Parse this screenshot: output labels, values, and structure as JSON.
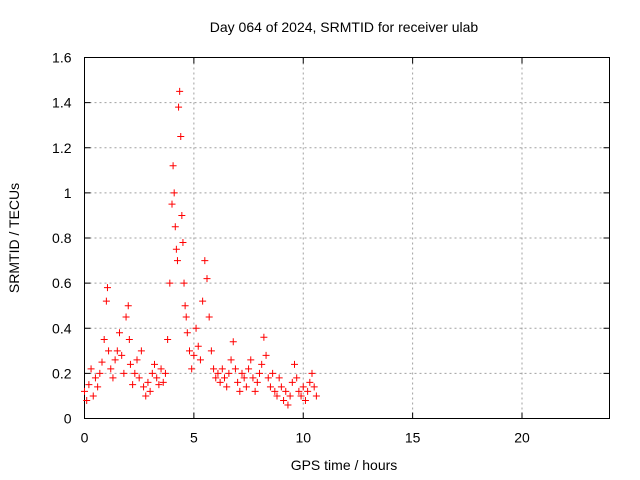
{
  "chart_data": {
    "type": "scatter",
    "title": "Day 064 of 2024, SRMTID for receiver ulab",
    "xlabel": "GPS time / hours",
    "ylabel": "SRMTID / TECUs",
    "xlim": [
      0,
      24
    ],
    "ylim": [
      0,
      1.6
    ],
    "xticks": [
      0,
      5,
      10,
      15,
      20
    ],
    "yticks": [
      0,
      0.2,
      0.4,
      0.6,
      0.8,
      1,
      1.2,
      1.4,
      1.6
    ],
    "xtick_labels": [
      "0",
      "5",
      "10",
      "15",
      "20"
    ],
    "ytick_labels": [
      "0",
      "0.2",
      "0.4",
      "0.6",
      "0.8",
      "1",
      "1.2",
      "1.4",
      "1.6"
    ],
    "grid": true,
    "marker": "+",
    "color": "#ff0000",
    "series": [
      {
        "name": "SRMTID",
        "x": [
          0.0,
          0.1,
          0.2,
          0.3,
          0.4,
          0.5,
          0.6,
          0.7,
          0.8,
          0.9,
          1.0,
          1.05,
          1.1,
          1.2,
          1.3,
          1.4,
          1.5,
          1.6,
          1.7,
          1.8,
          1.9,
          2.0,
          2.05,
          2.1,
          2.2,
          2.3,
          2.4,
          2.5,
          2.6,
          2.7,
          2.8,
          2.9,
          3.0,
          3.1,
          3.2,
          3.3,
          3.4,
          3.5,
          3.6,
          3.7,
          3.8,
          3.9,
          4.0,
          4.05,
          4.1,
          4.15,
          4.2,
          4.25,
          4.3,
          4.35,
          4.4,
          4.45,
          4.5,
          4.55,
          4.6,
          4.65,
          4.7,
          4.8,
          4.9,
          5.0,
          5.1,
          5.2,
          5.3,
          5.4,
          5.5,
          5.6,
          5.7,
          5.8,
          5.9,
          6.0,
          6.1,
          6.2,
          6.3,
          6.4,
          6.5,
          6.6,
          6.7,
          6.8,
          6.9,
          7.0,
          7.1,
          7.2,
          7.3,
          7.4,
          7.5,
          7.6,
          7.7,
          7.8,
          7.9,
          8.0,
          8.1,
          8.2,
          8.3,
          8.4,
          8.5,
          8.6,
          8.7,
          8.8,
          8.9,
          9.0,
          9.1,
          9.2,
          9.3,
          9.4,
          9.5,
          9.6,
          9.7,
          9.8,
          9.9,
          10.0,
          10.1,
          10.2,
          10.3,
          10.4,
          10.5,
          10.6
        ],
        "y": [
          0.12,
          0.08,
          0.15,
          0.22,
          0.1,
          0.18,
          0.14,
          0.2,
          0.25,
          0.35,
          0.52,
          0.58,
          0.3,
          0.22,
          0.18,
          0.26,
          0.3,
          0.38,
          0.28,
          0.2,
          0.45,
          0.5,
          0.35,
          0.24,
          0.15,
          0.2,
          0.26,
          0.18,
          0.3,
          0.14,
          0.1,
          0.16,
          0.12,
          0.2,
          0.24,
          0.18,
          0.15,
          0.22,
          0.16,
          0.2,
          0.35,
          0.6,
          0.95,
          1.12,
          1.0,
          0.85,
          0.75,
          0.7,
          1.38,
          1.45,
          1.25,
          0.9,
          0.78,
          0.6,
          0.5,
          0.45,
          0.38,
          0.3,
          0.22,
          0.28,
          0.4,
          0.32,
          0.26,
          0.52,
          0.7,
          0.62,
          0.45,
          0.3,
          0.22,
          0.18,
          0.2,
          0.16,
          0.22,
          0.18,
          0.14,
          0.2,
          0.26,
          0.34,
          0.22,
          0.16,
          0.12,
          0.2,
          0.18,
          0.14,
          0.22,
          0.26,
          0.18,
          0.12,
          0.16,
          0.2,
          0.24,
          0.36,
          0.28,
          0.18,
          0.14,
          0.2,
          0.12,
          0.1,
          0.18,
          0.14,
          0.08,
          0.12,
          0.06,
          0.1,
          0.16,
          0.24,
          0.18,
          0.12,
          0.1,
          0.14,
          0.08,
          0.12,
          0.16,
          0.2,
          0.14,
          0.1
        ]
      }
    ]
  }
}
